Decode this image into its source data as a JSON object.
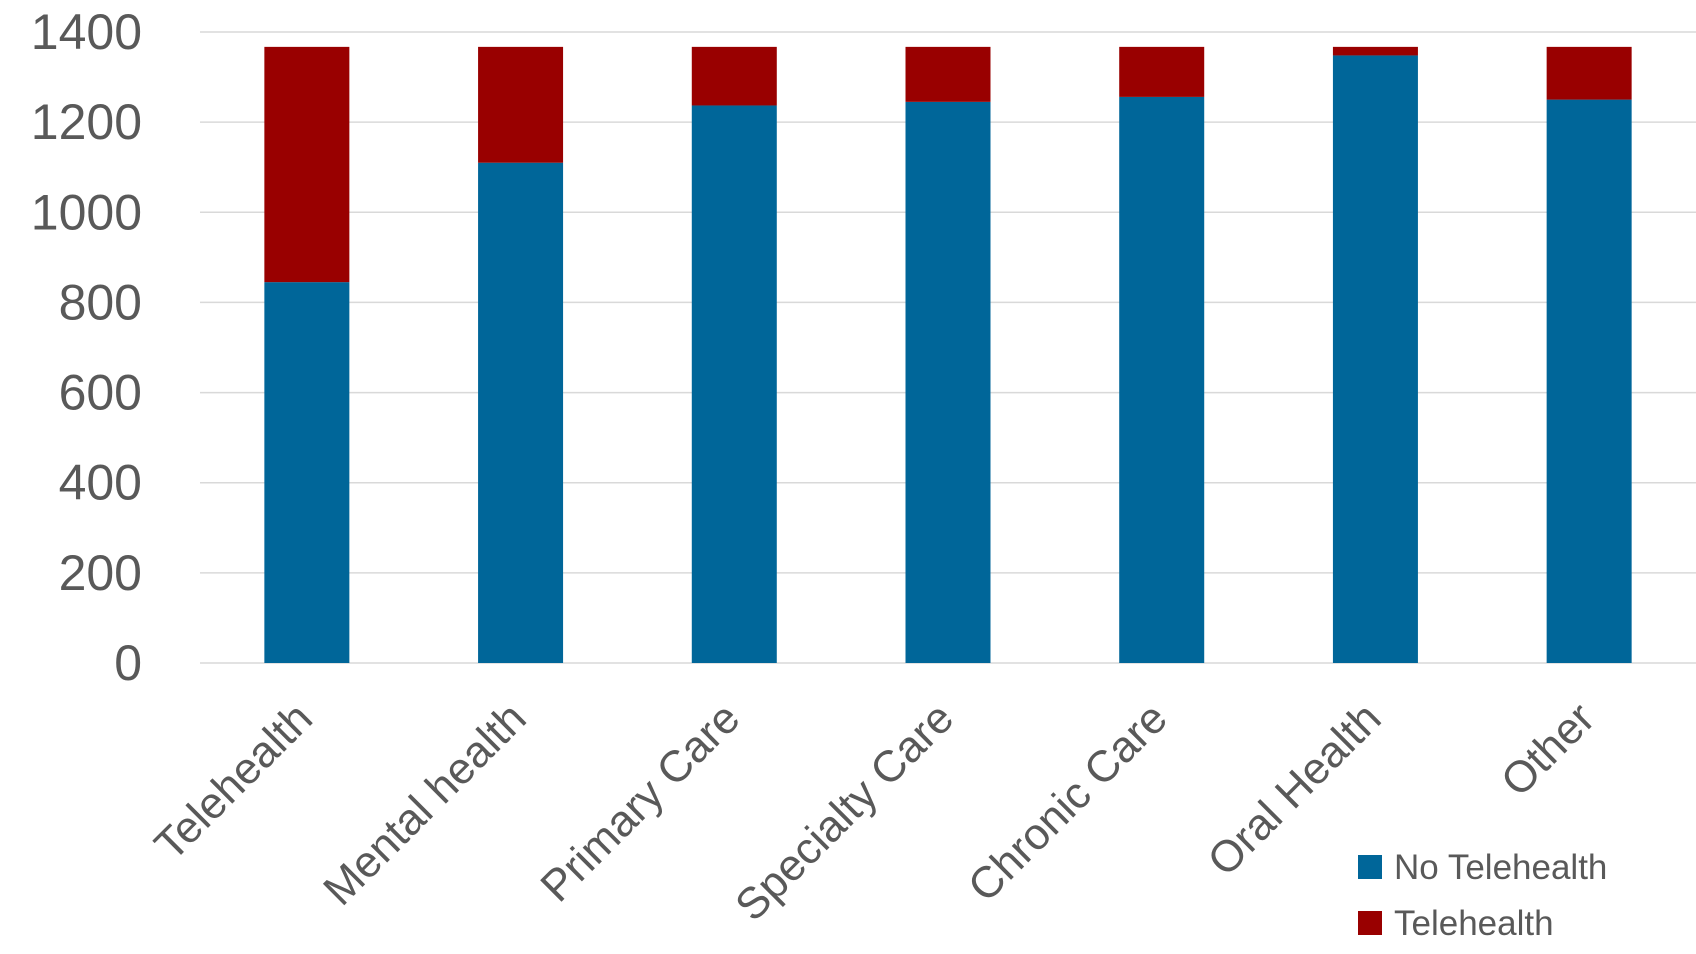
{
  "chart_data": {
    "type": "bar",
    "stacked": true,
    "title": "",
    "xlabel": "",
    "ylabel": "",
    "categories": [
      "Telehealth",
      "Mental health",
      "Primary Care",
      "Specialty Care",
      "Chronic Care",
      "Oral Health",
      "Other"
    ],
    "series": [
      {
        "name": "No Telehealth",
        "color": "#006699",
        "values": [
          845,
          1110,
          1237,
          1245,
          1256,
          1348,
          1250
        ]
      },
      {
        "name": "Telehealth",
        "color": "#990000",
        "values": [
          522,
          257,
          130,
          122,
          111,
          19,
          117
        ]
      }
    ],
    "ylim": [
      0,
      1400
    ],
    "yticks": [
      0,
      200,
      400,
      600,
      800,
      1000,
      1200,
      1400
    ],
    "grid": true,
    "legend": "bottom-right"
  }
}
